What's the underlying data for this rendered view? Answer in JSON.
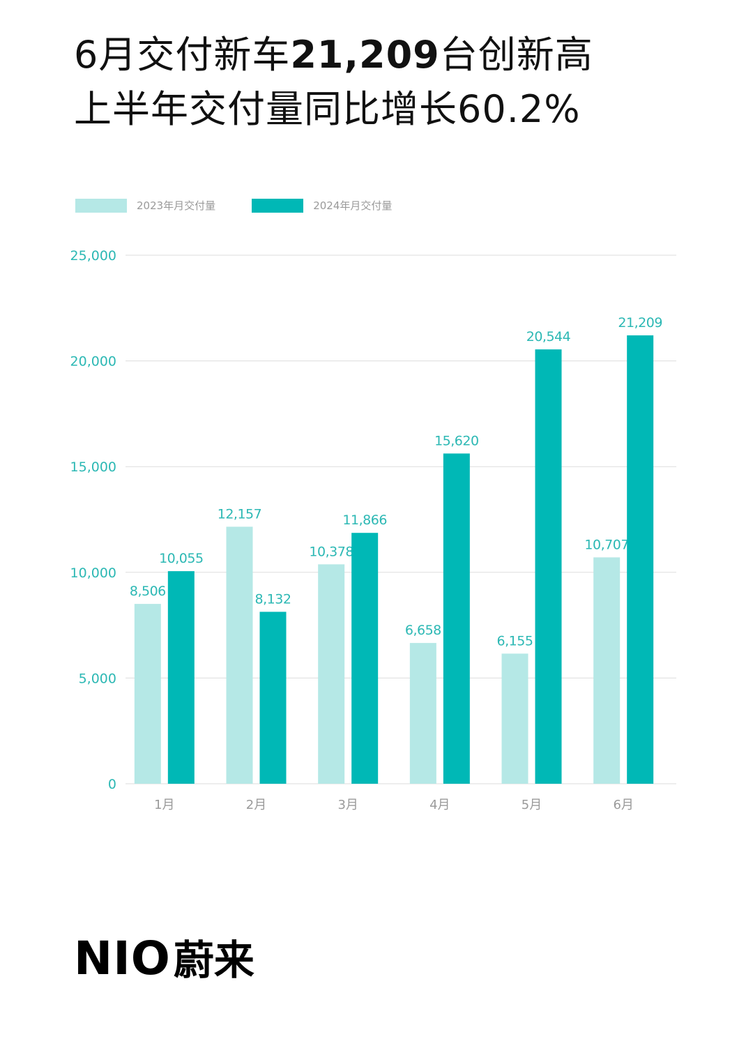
{
  "headline": {
    "line1_prefix": "6月交付新车",
    "line1_bold": "21,209",
    "line1_suffix": "台创新高",
    "line2": "上半年交付量同比增长60.2%"
  },
  "brand": {
    "latin": "NIO",
    "chinese": "蔚来"
  },
  "colors": {
    "series_2023": "#b5e8e6",
    "series_2024": "#00b8b6",
    "axis_text": "#2cb8b4",
    "grid": "#dddddd",
    "category_text": "#9a9a9a"
  },
  "chart_data": {
    "type": "bar",
    "categories": [
      "1月",
      "2月",
      "3月",
      "4月",
      "5月",
      "6月"
    ],
    "series": [
      {
        "name": "2023年月交付量",
        "values": [
          8506,
          12157,
          10378,
          6658,
          6155,
          10707
        ],
        "labels": [
          "8,506",
          "12,157",
          "10,378",
          "6,658",
          "6,155",
          "10,707"
        ]
      },
      {
        "name": "2024年月交付量",
        "values": [
          10055,
          8132,
          11866,
          15620,
          20544,
          21209
        ],
        "labels": [
          "10,055",
          "8,132",
          "11,866",
          "15,620",
          "20,544",
          "21,209"
        ]
      }
    ],
    "ylim": [
      0,
      25000
    ],
    "yticks": [
      0,
      5000,
      10000,
      15000,
      20000,
      25000
    ],
    "ytick_labels": [
      "0",
      "5,000",
      "10,000",
      "15,000",
      "20,000",
      "25,000"
    ],
    "grid": true,
    "legend_position": "top-left"
  }
}
